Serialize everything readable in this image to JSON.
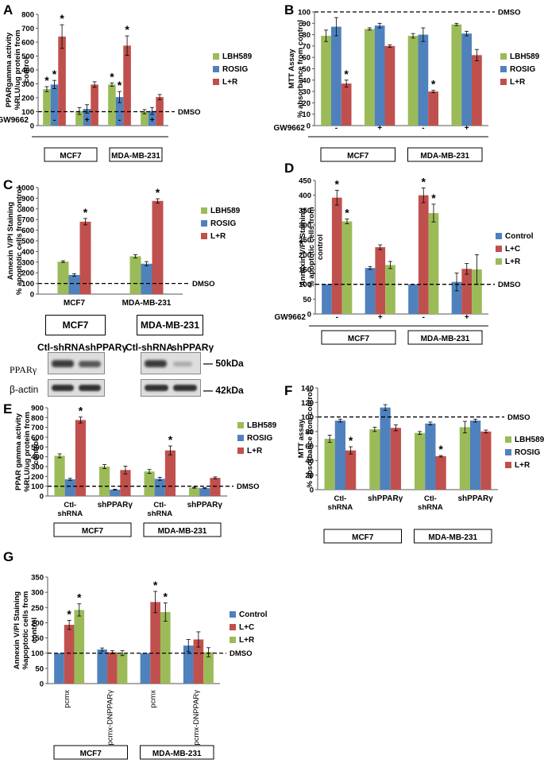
{
  "colors": {
    "green": "#9bbb59",
    "blue": "#4f81bd",
    "red": "#c0504d",
    "blot_bg": "#dedede",
    "band": "#3a3a3a"
  },
  "chart_data": [
    {
      "id": "A",
      "label": "A",
      "type": "bar",
      "ylabel": [
        "PPARgamma activity",
        "%RLU/ug protein from",
        "control"
      ],
      "ylim": [
        0,
        800
      ],
      "yticks": [
        0,
        100,
        200,
        300,
        400,
        500,
        600,
        700,
        800
      ],
      "categories": [
        "-",
        "+",
        "-",
        "+"
      ],
      "groups": [
        "MCF7",
        "MDA-MB-231"
      ],
      "row_label": "GW9662",
      "reference": {
        "value": 100,
        "label": "DMSO"
      },
      "series": [
        {
          "name": "LBH589",
          "color": "green",
          "values": [
            262,
            105,
            295,
            100
          ],
          "errors": [
            18,
            25,
            12,
            15
          ],
          "star": [
            true,
            false,
            true,
            false
          ]
        },
        {
          "name": "ROSIG",
          "color": "blue",
          "values": [
            295,
            120,
            205,
            105
          ],
          "errors": [
            30,
            30,
            40,
            25
          ],
          "star": [
            true,
            false,
            true,
            false
          ]
        },
        {
          "name": "L+R",
          "color": "red",
          "values": [
            640,
            295,
            575,
            205
          ],
          "errors": [
            85,
            20,
            70,
            18
          ],
          "star": [
            true,
            false,
            true,
            false
          ]
        }
      ]
    },
    {
      "id": "B",
      "label": "B",
      "type": "bar",
      "ylabel": [
        "MTT Assay",
        "% absorbance from control"
      ],
      "ylim": [
        0,
        100
      ],
      "yticks": [
        0,
        10,
        20,
        30,
        40,
        50,
        60,
        70,
        80,
        90,
        100
      ],
      "categories": [
        "-",
        "+",
        "-",
        "+"
      ],
      "groups": [
        "MCF7",
        "MDA-MB-231"
      ],
      "row_label": "GW9662",
      "reference": {
        "value": 100,
        "label": "DMSO"
      },
      "series": [
        {
          "name": "LBH589",
          "color": "green",
          "values": [
            79,
            85,
            79,
            89
          ],
          "errors": [
            5,
            1,
            2,
            1
          ],
          "star": [
            false,
            false,
            false,
            false
          ]
        },
        {
          "name": "ROSIG",
          "color": "blue",
          "values": [
            87,
            88,
            80,
            81
          ],
          "errors": [
            8,
            2,
            6,
            2
          ],
          "star": [
            false,
            false,
            false,
            false
          ]
        },
        {
          "name": "L+R",
          "color": "red",
          "values": [
            37,
            70,
            30,
            62
          ],
          "errors": [
            3,
            1,
            1,
            5
          ],
          "star": [
            true,
            false,
            true,
            false
          ]
        }
      ]
    },
    {
      "id": "C",
      "label": "C",
      "type": "bar",
      "ylabel": [
        "Annexin V/PI Staining",
        "% apoptotic cells from control"
      ],
      "ylim": [
        0,
        1000
      ],
      "yticks": [
        0,
        100,
        200,
        300,
        400,
        500,
        600,
        700,
        800,
        900,
        1000
      ],
      "categories": [
        "MCF7",
        "MDA-MB-231"
      ],
      "reference": {
        "value": 100,
        "label": "DMSO"
      },
      "series": [
        {
          "name": "LBH589",
          "color": "green",
          "values": [
            305,
            355
          ],
          "errors": [
            8,
            15
          ],
          "star": [
            false,
            false
          ]
        },
        {
          "name": "ROSIG",
          "color": "blue",
          "values": [
            180,
            285
          ],
          "errors": [
            12,
            20
          ],
          "star": [
            false,
            false
          ]
        },
        {
          "name": "L+R",
          "color": "red",
          "values": [
            680,
            875
          ],
          "errors": [
            30,
            20
          ],
          "star": [
            true,
            true
          ]
        }
      ]
    },
    {
      "id": "D",
      "label": "D",
      "type": "bar",
      "ylabel": [
        "Annexin V/PI Staining",
        "% apoptotic cells from",
        "control"
      ],
      "ylim": [
        0,
        450
      ],
      "yticks": [
        0,
        50,
        100,
        150,
        200,
        250,
        300,
        350,
        400,
        450
      ],
      "categories": [
        "-",
        "+",
        "-",
        "+"
      ],
      "groups": [
        "MCF7",
        "MDA-MB-231"
      ],
      "row_label": "GW9662",
      "reference": {
        "value": 100,
        "label": "DMSO"
      },
      "series": [
        {
          "name": "Control",
          "color": "blue",
          "values": [
            100,
            155,
            100,
            108
          ],
          "errors": [
            0,
            5,
            0,
            30
          ],
          "star": [
            false,
            false,
            false,
            false
          ]
        },
        {
          "name": "L+C",
          "color": "red",
          "values": [
            392,
            225,
            400,
            152
          ],
          "errors": [
            25,
            8,
            25,
            18
          ],
          "star": [
            true,
            false,
            true,
            false
          ]
        },
        {
          "name": "L+R",
          "color": "green",
          "values": [
            312,
            165,
            340,
            150
          ],
          "errors": [
            8,
            12,
            30,
            50
          ],
          "star": [
            true,
            false,
            true,
            false
          ]
        }
      ]
    },
    {
      "id": "E",
      "label": "E",
      "type": "bar",
      "ylabel": [
        "PPAR gamma activity",
        "%RLU/ug protein from",
        "control"
      ],
      "ylim": [
        0,
        900
      ],
      "yticks": [
        0,
        100,
        200,
        300,
        400,
        500,
        600,
        700,
        800,
        900
      ],
      "categories": [
        "Ctl-\nshRNA",
        "shPPARγ",
        "Ctl-\nshRNA",
        "shPPARγ"
      ],
      "groups": [
        "MCF7",
        "MDA-MB-231"
      ],
      "reference": {
        "value": 100,
        "label": "DMSO"
      },
      "series": [
        {
          "name": "LBH589",
          "color": "green",
          "values": [
            410,
            300,
            250,
            85
          ],
          "errors": [
            20,
            20,
            20,
            5
          ],
          "star": [
            false,
            false,
            false,
            false
          ]
        },
        {
          "name": "ROSIG",
          "color": "blue",
          "values": [
            170,
            65,
            175,
            80
          ],
          "errors": [
            10,
            5,
            15,
            5
          ],
          "star": [
            false,
            false,
            false,
            false
          ]
        },
        {
          "name": "L+R",
          "color": "red",
          "values": [
            775,
            265,
            465,
            185
          ],
          "errors": [
            30,
            40,
            45,
            10
          ],
          "star": [
            true,
            false,
            true,
            false
          ]
        }
      ]
    },
    {
      "id": "F",
      "label": "F",
      "type": "bar",
      "ylabel": [
        "MTT assay",
        "% absorbance from control"
      ],
      "ylim": [
        0,
        140
      ],
      "yticks": [
        0,
        20,
        40,
        60,
        80,
        100,
        120,
        140
      ],
      "categories": [
        "Ctl-\nshRNA",
        "shPPARγ",
        "Ctl-\nshRNA",
        "shPPARγ"
      ],
      "groups": [
        "MCF7",
        "MDA-MB-231"
      ],
      "reference": {
        "value": 100,
        "label": "DMSO"
      },
      "series": [
        {
          "name": "LBH589",
          "color": "green",
          "values": [
            70,
            83,
            78,
            86
          ],
          "errors": [
            5,
            3,
            2,
            8
          ],
          "star": [
            false,
            false,
            false,
            false
          ]
        },
        {
          "name": "ROSIG",
          "color": "blue",
          "values": [
            95,
            113,
            91,
            95
          ],
          "errors": [
            2,
            4,
            2,
            2
          ],
          "star": [
            false,
            false,
            false,
            false
          ]
        },
        {
          "name": "L+R",
          "color": "red",
          "values": [
            54,
            85,
            46,
            80
          ],
          "errors": [
            5,
            4,
            1,
            2
          ],
          "star": [
            true,
            false,
            true,
            false
          ]
        }
      ]
    },
    {
      "id": "G",
      "label": "G",
      "type": "bar",
      "ylabel": [
        "Annexin V/PI Staining",
        "%apoptotic cells from",
        "control"
      ],
      "ylim": [
        0,
        350
      ],
      "yticks": [
        0,
        50,
        100,
        150,
        200,
        250,
        300,
        350
      ],
      "categories": [
        "pcmx",
        "pcmx-DNPPARγ",
        "pcmx",
        "pcmx-DNPPARγ"
      ],
      "groups": [
        "MCF7",
        "MDA-MB-231"
      ],
      "reference": {
        "value": 100,
        "label": "DMSO"
      },
      "series": [
        {
          "name": "Control",
          "color": "blue",
          "values": [
            100,
            112,
            100,
            125
          ],
          "errors": [
            0,
            5,
            0,
            20
          ],
          "star": [
            false,
            false,
            false,
            false
          ]
        },
        {
          "name": "L+C",
          "color": "red",
          "values": [
            193,
            103,
            268,
            145
          ],
          "errors": [
            15,
            5,
            35,
            25
          ],
          "star": [
            true,
            false,
            true,
            false
          ]
        },
        {
          "name": "L+R",
          "color": "green",
          "values": [
            242,
            100,
            235,
            103
          ],
          "errors": [
            20,
            8,
            30,
            15
          ],
          "star": [
            true,
            false,
            true,
            false
          ]
        }
      ]
    }
  ],
  "blot": {
    "cell_lines": [
      "MCF7",
      "MDA-MB-231"
    ],
    "lanes": [
      "Ctl-shRNA",
      "shPPARγ"
    ],
    "rows": [
      "PPARγ",
      "β-actin"
    ],
    "markers": [
      "50kDa",
      "42kDa"
    ]
  }
}
